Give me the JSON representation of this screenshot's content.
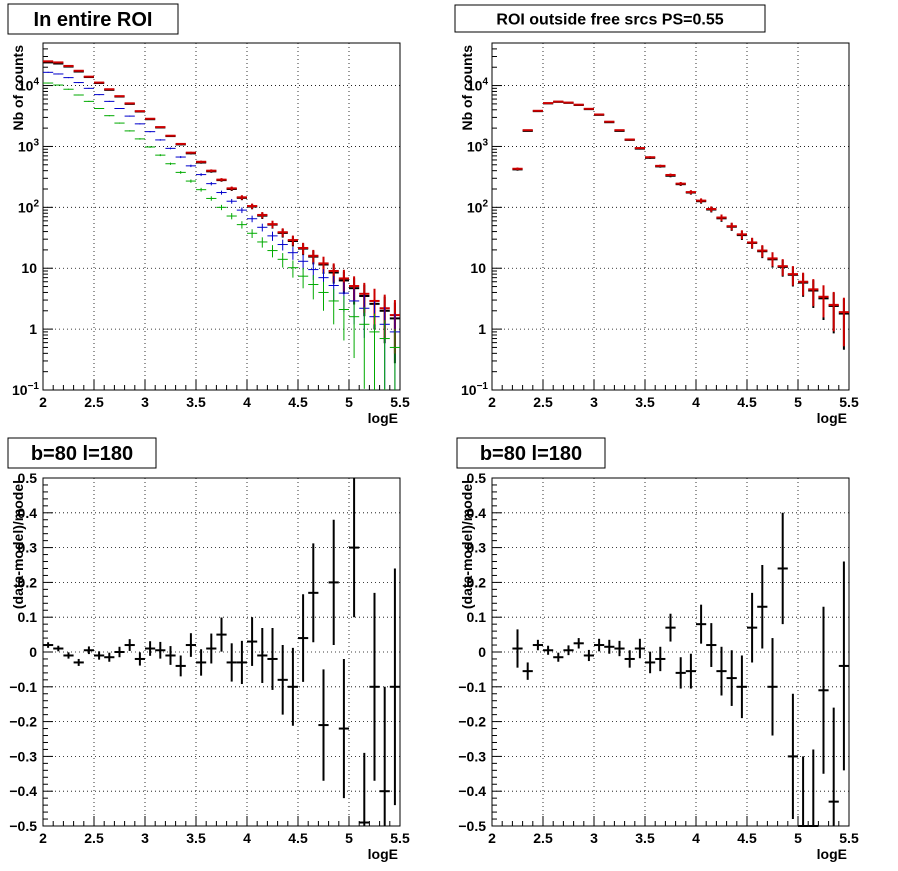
{
  "chart_data": [
    {
      "type": "scatter",
      "title": "In entire ROI",
      "xlabel": "logE",
      "ylabel": "Nb of counts",
      "xlim": [
        2,
        5.5
      ],
      "ylim": [
        0.1,
        50000
      ],
      "yscale": "log",
      "grid": true,
      "x_ticks": [
        "2",
        "2.5",
        "3",
        "3.5",
        "4",
        "4.5",
        "5",
        "5.5"
      ],
      "y_ticks": [
        {
          "value": 0.1,
          "base": "10",
          "exp": "−1"
        },
        {
          "value": 1,
          "label": "1"
        },
        {
          "value": 10,
          "label": "10"
        },
        {
          "value": 100,
          "base": "10",
          "exp": "2"
        },
        {
          "value": 1000,
          "base": "10",
          "exp": "3"
        },
        {
          "value": 10000,
          "base": "10",
          "exp": "4"
        }
      ],
      "series": [
        {
          "color": "#000000",
          "x": [
            2.05,
            2.15,
            2.25,
            2.35,
            2.45,
            2.55,
            2.65,
            2.75,
            2.85,
            2.95,
            3.05,
            3.15,
            3.25,
            3.35,
            3.45,
            3.55,
            3.65,
            3.75,
            3.85,
            3.95,
            4.05,
            4.15,
            4.25,
            4.35,
            4.45,
            4.55,
            4.65,
            4.75,
            4.85,
            4.95,
            5.05,
            5.15,
            5.25,
            5.35,
            5.45
          ],
          "y": [
            24000,
            23000,
            20500,
            17000,
            13800,
            11000,
            8500,
            6600,
            5000,
            3750,
            2800,
            2050,
            1480,
            1080,
            770,
            545,
            390,
            280,
            200,
            143,
            103,
            73,
            52,
            38,
            28,
            21,
            15.5,
            11.5,
            8.5,
            6.3,
            4.7,
            3.5,
            2.6,
            2.0,
            1.5
          ]
        },
        {
          "color": "#cc0000",
          "x": [
            2.05,
            2.15,
            2.25,
            2.35,
            2.45,
            2.55,
            2.65,
            2.75,
            2.85,
            2.95,
            3.05,
            3.15,
            3.25,
            3.35,
            3.45,
            3.55,
            3.65,
            3.75,
            3.85,
            3.95,
            4.05,
            4.15,
            4.25,
            4.35,
            4.45,
            4.55,
            4.65,
            4.75,
            4.85,
            4.95,
            5.05,
            5.15,
            5.25,
            5.35,
            5.45
          ],
          "y": [
            25000,
            24000,
            21000,
            17500,
            14000,
            11200,
            8700,
            6700,
            5100,
            3800,
            2850,
            2080,
            1500,
            1100,
            790,
            560,
            400,
            285,
            205,
            146,
            105,
            75,
            53,
            39,
            29,
            21.5,
            16,
            12,
            9,
            6.8,
            5.1,
            3.8,
            2.9,
            2.2,
            1.7
          ]
        },
        {
          "color": "#0000cc",
          "x": [
            2.05,
            2.15,
            2.25,
            2.35,
            2.45,
            2.55,
            2.65,
            2.75,
            2.85,
            2.95,
            3.05,
            3.15,
            3.25,
            3.35,
            3.45,
            3.55,
            3.65,
            3.75,
            3.85,
            3.95,
            4.05,
            4.15,
            4.25,
            4.35,
            4.45,
            4.55,
            4.65,
            4.75,
            4.85,
            4.95,
            5.05,
            5.15,
            5.25,
            5.35,
            5.45
          ],
          "y": [
            16500,
            15500,
            13500,
            11200,
            9000,
            7100,
            5500,
            4200,
            3150,
            2350,
            1750,
            1280,
            930,
            670,
            480,
            345,
            245,
            175,
            126,
            90,
            65,
            47,
            34,
            24.5,
            18,
            13,
            9.5,
            7,
            5.2,
            3.9,
            2.9,
            2.2,
            1.6,
            1.2,
            0.9
          ]
        },
        {
          "color": "#00aa00",
          "x": [
            2.05,
            2.15,
            2.25,
            2.35,
            2.45,
            2.55,
            2.65,
            2.75,
            2.85,
            2.95,
            3.05,
            3.15,
            3.25,
            3.35,
            3.45,
            3.55,
            3.65,
            3.75,
            3.85,
            3.95,
            4.05,
            4.15,
            4.25,
            4.35,
            4.45,
            4.55,
            4.65,
            4.75,
            4.85,
            4.95,
            5.05,
            5.15,
            5.25,
            5.35,
            5.45
          ],
          "y": [
            11000,
            10200,
            8700,
            7000,
            5500,
            4200,
            3200,
            2420,
            1800,
            1330,
            980,
            720,
            520,
            375,
            270,
            195,
            140,
            100,
            72,
            52,
            37.5,
            27,
            19.5,
            14,
            10.2,
            7.4,
            5.4,
            4.0,
            2.9,
            2.1,
            1.6,
            1.2,
            0.9,
            0.7,
            0.5
          ]
        }
      ]
    },
    {
      "type": "scatter",
      "title": "ROI outside free srcs PS=0.55",
      "xlabel": "logE",
      "ylabel": "Nb of counts",
      "xlim": [
        2,
        5.5
      ],
      "ylim": [
        0.1,
        50000
      ],
      "yscale": "log",
      "grid": true,
      "x_ticks": [
        "2",
        "2.5",
        "3",
        "3.5",
        "4",
        "4.5",
        "5",
        "5.5"
      ],
      "y_ticks": [
        {
          "value": 0.1,
          "base": "10",
          "exp": "−1"
        },
        {
          "value": 1,
          "label": "1"
        },
        {
          "value": 10,
          "label": "10"
        },
        {
          "value": 100,
          "base": "10",
          "exp": "2"
        },
        {
          "value": 1000,
          "base": "10",
          "exp": "3"
        },
        {
          "value": 10000,
          "base": "10",
          "exp": "4"
        }
      ],
      "series": [
        {
          "color": "#000000",
          "x": [
            2.25,
            2.35,
            2.45,
            2.55,
            2.65,
            2.75,
            2.85,
            2.95,
            3.05,
            3.15,
            3.25,
            3.35,
            3.45,
            3.55,
            3.65,
            3.75,
            3.85,
            3.95,
            4.05,
            4.15,
            4.25,
            4.35,
            4.45,
            4.55,
            4.65,
            4.75,
            4.85,
            4.95,
            5.05,
            5.15,
            5.25,
            5.35,
            5.45
          ],
          "y": [
            420,
            1800,
            3800,
            5100,
            5400,
            5200,
            4800,
            4100,
            3300,
            2500,
            1800,
            1280,
            920,
            650,
            470,
            330,
            240,
            175,
            126,
            92,
            66,
            48,
            35,
            26,
            19,
            14,
            10.5,
            7.8,
            5.8,
            4.3,
            3.2,
            2.4,
            1.8
          ]
        },
        {
          "color": "#cc0000",
          "x": [
            2.25,
            2.35,
            2.45,
            2.55,
            2.65,
            2.75,
            2.85,
            2.95,
            3.05,
            3.15,
            3.25,
            3.35,
            3.45,
            3.55,
            3.65,
            3.75,
            3.85,
            3.95,
            4.05,
            4.15,
            4.25,
            4.35,
            4.45,
            4.55,
            4.65,
            4.75,
            4.85,
            4.95,
            5.05,
            5.15,
            5.25,
            5.35,
            5.45
          ],
          "y": [
            430,
            1850,
            3850,
            5150,
            5450,
            5250,
            4850,
            4150,
            3350,
            2550,
            1850,
            1300,
            940,
            665,
            480,
            340,
            245,
            178,
            129,
            94,
            68,
            49,
            36,
            26.5,
            19.5,
            14.5,
            10.8,
            8.0,
            6.0,
            4.5,
            3.4,
            2.5,
            1.9
          ]
        }
      ]
    },
    {
      "type": "scatter",
      "title": "b=80 l=180",
      "xlabel": "logE",
      "ylabel": "(data-model)/model",
      "xlim": [
        2,
        5.5
      ],
      "ylim": [
        -0.5,
        0.5
      ],
      "grid": true,
      "x_ticks": [
        "2",
        "2.5",
        "3",
        "3.5",
        "4",
        "4.5",
        "5",
        "5.5"
      ],
      "y_ticks": [
        "−0.5",
        "−0.4",
        "−0.3",
        "−0.2",
        "−0.1",
        "0",
        "0.1",
        "0.2",
        "0.3",
        "0.4",
        "0.5"
      ],
      "series": [
        {
          "color": "#000000",
          "x": [
            2.05,
            2.15,
            2.25,
            2.35,
            2.45,
            2.55,
            2.65,
            2.75,
            2.85,
            2.95,
            3.05,
            3.15,
            3.25,
            3.35,
            3.45,
            3.55,
            3.65,
            3.75,
            3.85,
            3.95,
            4.05,
            4.15,
            4.25,
            4.35,
            4.45,
            4.55,
            4.65,
            4.75,
            4.85,
            4.95,
            5.05,
            5.15,
            5.25,
            5.35,
            5.45
          ],
          "y": [
            0.02,
            0.01,
            -0.01,
            -0.03,
            0.005,
            -0.01,
            -0.015,
            0.0,
            0.02,
            -0.02,
            0.01,
            0.005,
            -0.01,
            -0.04,
            0.02,
            -0.03,
            0.01,
            0.05,
            -0.03,
            -0.03,
            0.03,
            -0.01,
            -0.02,
            -0.08,
            -0.1,
            0.04,
            0.17,
            -0.21,
            0.2,
            -0.22,
            0.3,
            -0.49,
            -0.1,
            -0.4,
            -0.1
          ],
          "err": [
            0.008,
            0.008,
            0.009,
            0.01,
            0.011,
            0.012,
            0.013,
            0.015,
            0.017,
            0.019,
            0.021,
            0.024,
            0.027,
            0.03,
            0.034,
            0.038,
            0.043,
            0.049,
            0.055,
            0.062,
            0.07,
            0.079,
            0.089,
            0.1,
            0.112,
            0.126,
            0.142,
            0.16,
            0.18,
            0.2,
            0.2,
            0.2,
            0.27,
            0.3,
            0.34
          ]
        }
      ]
    },
    {
      "type": "scatter",
      "title": "b=80 l=180",
      "xlabel": "logE",
      "ylabel": "(data-model)/model",
      "xlim": [
        2,
        5.5
      ],
      "ylim": [
        -0.5,
        0.5
      ],
      "grid": true,
      "x_ticks": [
        "2",
        "2.5",
        "3",
        "3.5",
        "4",
        "4.5",
        "5",
        "5.5"
      ],
      "y_ticks": [
        "−0.5",
        "−0.4",
        "−0.3",
        "−0.2",
        "−0.1",
        "0",
        "0.1",
        "0.2",
        "0.3",
        "0.4",
        "0.5"
      ],
      "series": [
        {
          "color": "#000000",
          "x": [
            2.25,
            2.35,
            2.45,
            2.55,
            2.65,
            2.75,
            2.85,
            2.95,
            3.05,
            3.15,
            3.25,
            3.35,
            3.45,
            3.55,
            3.65,
            3.75,
            3.85,
            3.95,
            4.05,
            4.15,
            4.25,
            4.35,
            4.45,
            4.55,
            4.65,
            4.75,
            4.85,
            4.95,
            5.05,
            5.15,
            5.25,
            5.35,
            5.45
          ],
          "y": [
            0.01,
            -0.055,
            0.02,
            0.005,
            -0.015,
            0.005,
            0.025,
            -0.01,
            0.02,
            0.015,
            0.01,
            -0.02,
            0.01,
            -0.03,
            -0.02,
            0.07,
            -0.06,
            -0.055,
            0.08,
            0.02,
            -0.055,
            -0.075,
            -0.1,
            0.07,
            0.13,
            -0.1,
            0.24,
            -0.3,
            -0.5,
            -0.5,
            -0.11,
            -0.43,
            -0.04
          ],
          "err": [
            0.055,
            0.025,
            0.015,
            0.013,
            0.013,
            0.014,
            0.015,
            0.016,
            0.018,
            0.02,
            0.022,
            0.025,
            0.028,
            0.031,
            0.035,
            0.04,
            0.045,
            0.05,
            0.056,
            0.063,
            0.07,
            0.08,
            0.09,
            0.1,
            0.12,
            0.14,
            0.16,
            0.18,
            0.2,
            0.22,
            0.24,
            0.27,
            0.3
          ]
        }
      ]
    }
  ]
}
